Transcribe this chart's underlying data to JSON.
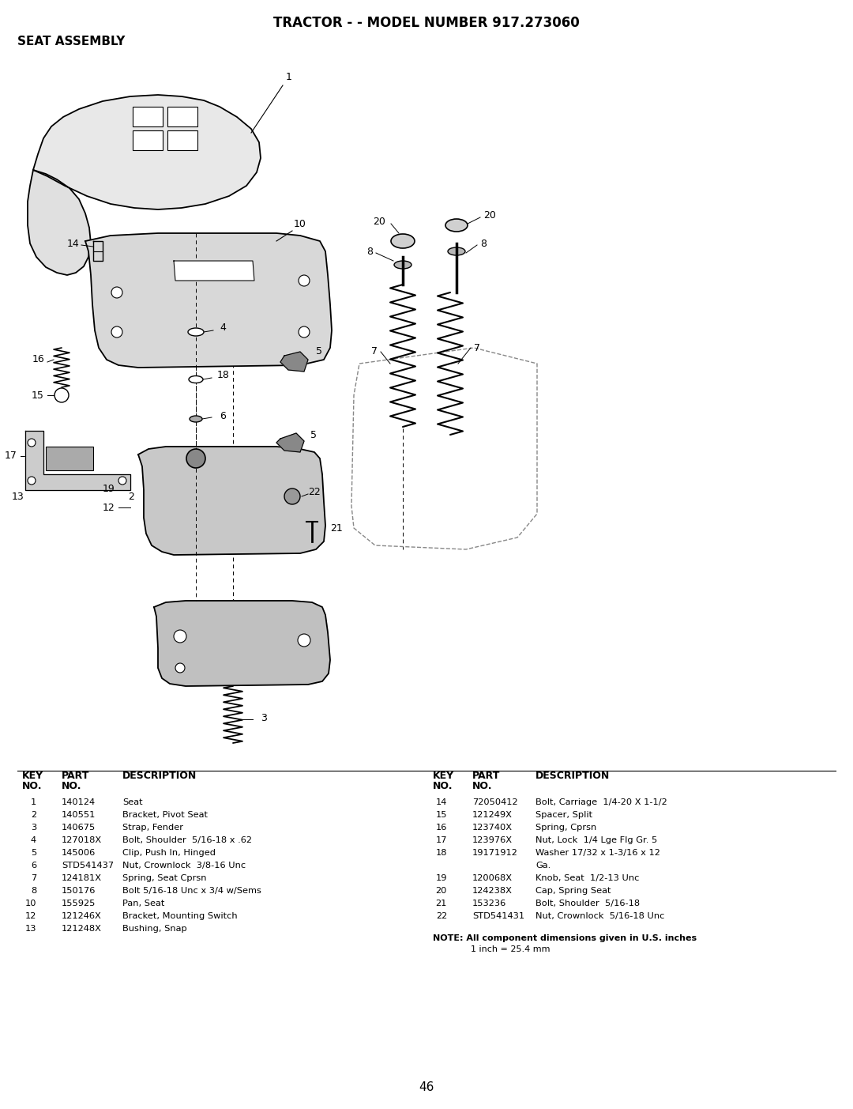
{
  "title": "TRACTOR - - MODEL NUMBER 917.273060",
  "subtitle": "SEAT ASSEMBLY",
  "page_number": "46",
  "background_color": "#ffffff",
  "title_fontsize": 12,
  "subtitle_fontsize": 11,
  "table_header_fontsize": 9,
  "table_body_fontsize": 8.2,
  "note_fontsize": 8,
  "left_table_rows": [
    [
      "1",
      "140124",
      "Seat"
    ],
    [
      "2",
      "140551",
      "Bracket, Pivot Seat"
    ],
    [
      "3",
      "140675",
      "Strap, Fender"
    ],
    [
      "4",
      "127018X",
      "Bolt, Shoulder  5/16-18 x .62"
    ],
    [
      "5",
      "145006",
      "Clip, Push In, Hinged"
    ],
    [
      "6",
      "STD541437",
      "Nut, Crownlock  3/8-16 Unc"
    ],
    [
      "7",
      "124181X",
      "Spring, Seat Cprsn"
    ],
    [
      "8",
      "150176",
      "Bolt 5/16-18 Unc x 3/4 w/Sems"
    ],
    [
      "10",
      "155925",
      "Pan, Seat"
    ],
    [
      "12",
      "121246X",
      "Bracket, Mounting Switch"
    ],
    [
      "13",
      "121248X",
      "Bushing, Snap"
    ]
  ],
  "right_table_rows": [
    [
      "14",
      "72050412",
      "Bolt, Carriage  1/4-20 X 1-1/2"
    ],
    [
      "15",
      "121249X",
      "Spacer, Split"
    ],
    [
      "16",
      "123740X",
      "Spring, Cprsn"
    ],
    [
      "17",
      "123976X",
      "Nut, Lock  1/4 Lge Flg Gr. 5"
    ],
    [
      "18",
      "19171912",
      "Washer 17/32 x 1-3/16 x 12"
    ],
    [
      "",
      "",
      "Ga."
    ],
    [
      "19",
      "120068X",
      "Knob, Seat  1/2-13 Unc"
    ],
    [
      "20",
      "124238X",
      "Cap, Spring Seat"
    ],
    [
      "21",
      "153236",
      "Bolt, Shoulder  5/16-18"
    ],
    [
      "22",
      "STD541431",
      "Nut, Crownlock  5/16-18 Unc"
    ]
  ],
  "note_line1": "NOTE: All component dimensions given in U.S. inches",
  "note_line2": "1 inch = 25.4 mm"
}
